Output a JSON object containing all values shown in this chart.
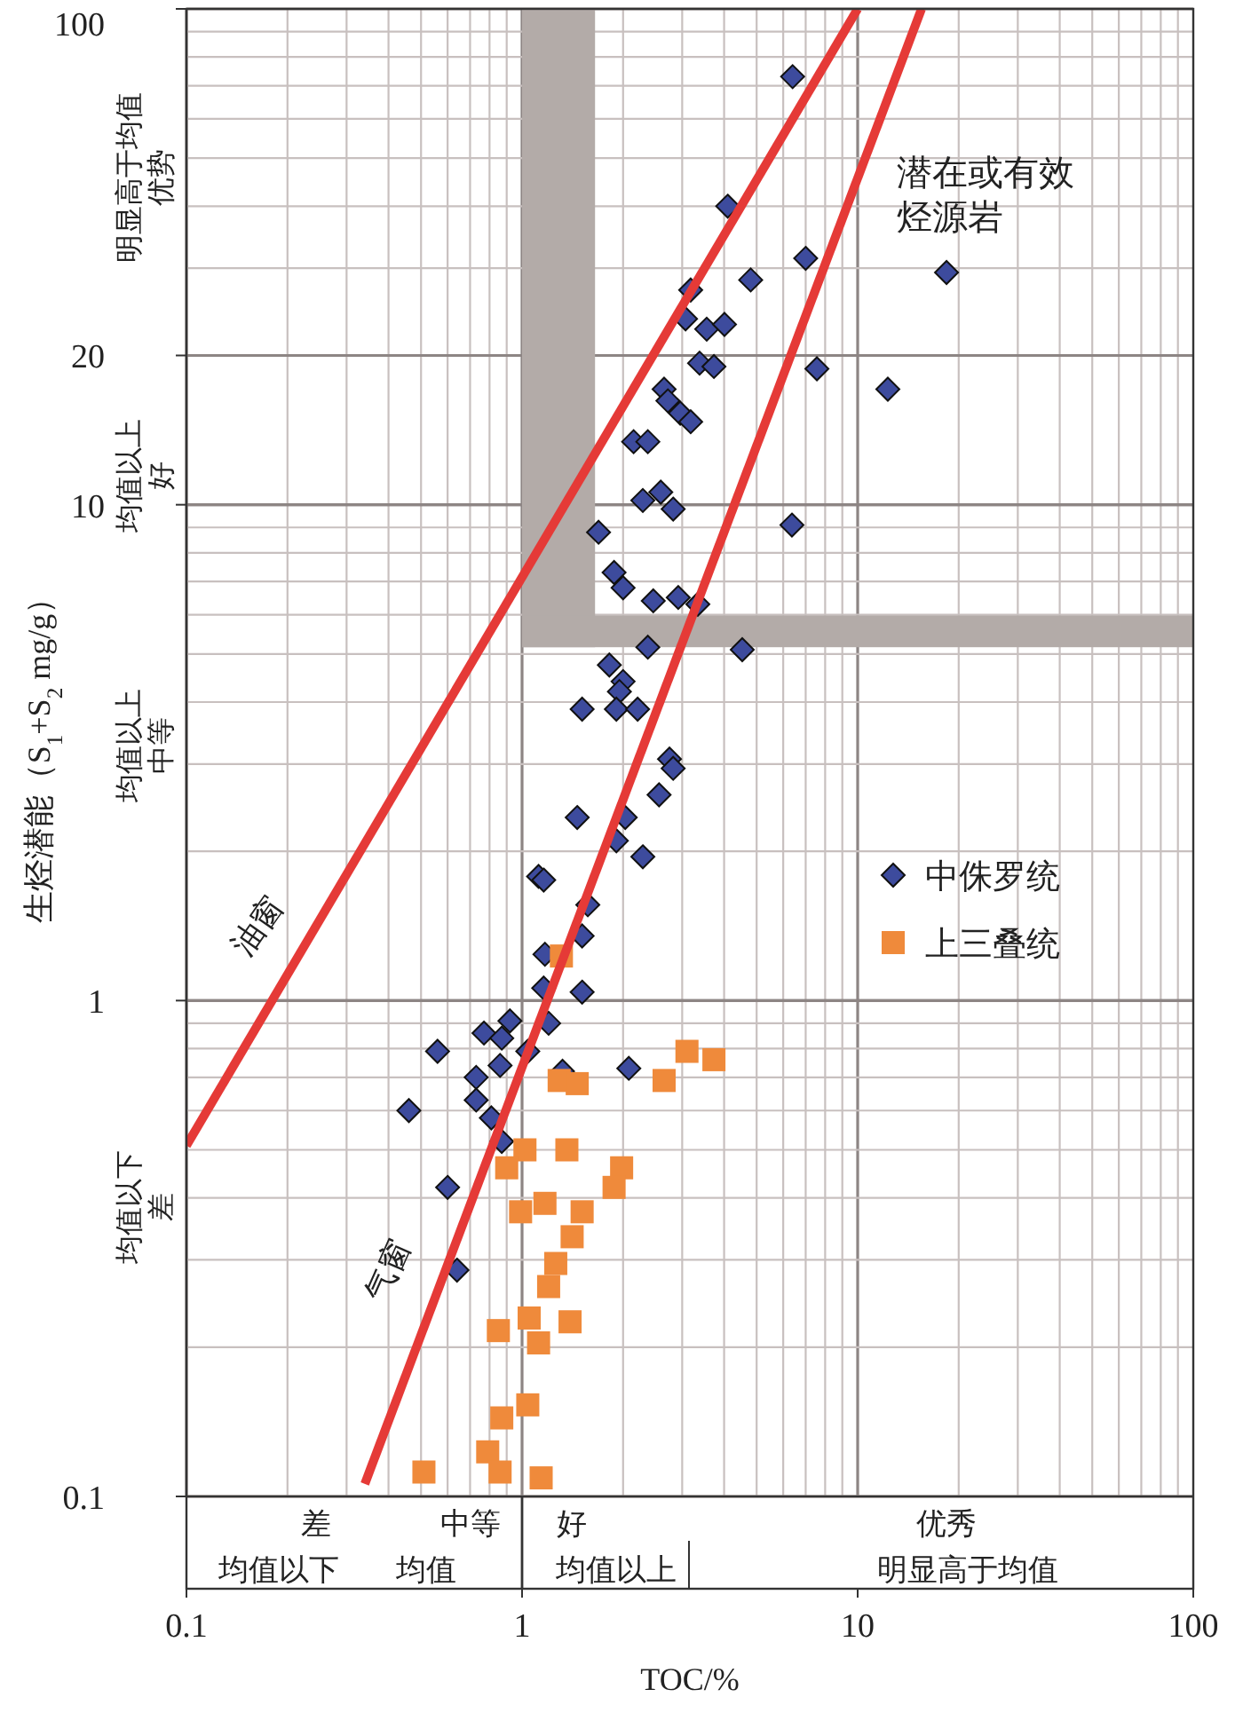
{
  "chart_data": {
    "type": "scatter",
    "xlabel": "TOC/%",
    "ylabel": "生烃潜能（S$_{1}$+S$_{2}$ mg/g）",
    "xlim": [
      0.1,
      100
    ],
    "ylim": [
      0.1,
      100
    ],
    "xticks": [
      0.1,
      1,
      10,
      100
    ],
    "yticks": [
      0.1,
      1,
      10,
      20,
      100
    ],
    "log": "xy",
    "grid": true,
    "legend": "right",
    "bands": [
      {
        "axis": "x",
        "from": 1,
        "to": 1.65,
        "color": "#b3aba8"
      },
      {
        "axis": "y",
        "from": 5.16,
        "to": 5.98,
        "color": "#b3aba8"
      }
    ],
    "series": [
      {
        "name": "中侏罗统",
        "type": "scatter",
        "marker": "diamond",
        "color": "#3d4b9d",
        "x": [
          6.4,
          4.1,
          18.4,
          7.0,
          4.8,
          3.18,
          3.07,
          3.55,
          4.01,
          3.38,
          3.73,
          7.56,
          12.3,
          2.65,
          2.72,
          2.96,
          3.18,
          2.15,
          2.37,
          2.29,
          2.59,
          2.82,
          6.37,
          1.69,
          1.88,
          2.0,
          2.46,
          2.92,
          3.34,
          2.37,
          4.53,
          1.82,
          2.0,
          1.95,
          1.51,
          1.91,
          2.21,
          2.75,
          2.82,
          2.56,
          1.46,
          2.03,
          1.91,
          2.29,
          1.12,
          1.16,
          1.57,
          1.51,
          1.17,
          1.16,
          1.51,
          0.92,
          0.77,
          0.87,
          1.2,
          0.56,
          1.04,
          0.86,
          2.08,
          1.32,
          0.73,
          0.46,
          0.73,
          0.81,
          0.87,
          0.6,
          0.64
        ],
        "values": [
          73,
          40,
          29.4,
          31.4,
          28.4,
          27.1,
          23.7,
          22.6,
          23.1,
          19.3,
          19.0,
          18.8,
          17.1,
          17.1,
          16.2,
          15.3,
          14.7,
          13.4,
          13.4,
          10.2,
          10.6,
          9.8,
          9.1,
          8.8,
          7.3,
          6.8,
          6.4,
          6.5,
          6.3,
          5.16,
          5.1,
          4.75,
          4.4,
          4.2,
          3.87,
          3.87,
          3.87,
          3.07,
          2.94,
          2.6,
          2.34,
          2.34,
          2.1,
          1.95,
          1.78,
          1.75,
          1.56,
          1.35,
          1.24,
          1.06,
          1.04,
          0.91,
          0.86,
          0.84,
          0.9,
          0.79,
          0.79,
          0.74,
          0.73,
          0.72,
          0.7,
          0.6,
          0.63,
          0.58,
          0.52,
          0.42,
          0.286
        ]
      },
      {
        "name": "上三叠统",
        "type": "scatter",
        "marker": "square",
        "color": "#ef8a3b",
        "x": [
          3.1,
          3.73,
          2.65,
          1.29,
          1.46,
          1.31,
          1.02,
          1.36,
          0.9,
          1.98,
          1.88,
          0.99,
          1.17,
          1.51,
          1.41,
          1.26,
          1.2,
          1.05,
          1.12,
          1.39,
          0.85,
          1.04,
          0.87,
          0.79,
          0.86,
          0.51,
          1.14
        ],
        "values": [
          0.79,
          0.76,
          0.69,
          0.69,
          0.68,
          1.23,
          0.5,
          0.5,
          0.46,
          0.46,
          0.42,
          0.375,
          0.39,
          0.375,
          0.334,
          0.295,
          0.265,
          0.229,
          0.204,
          0.225,
          0.216,
          0.153,
          0.144,
          0.123,
          0.112,
          0.112,
          0.109
        ]
      },
      {
        "type": "line",
        "color": "#e53a37",
        "x": [
          0.1,
          10
        ],
        "values": [
          0.51,
          100
        ]
      },
      {
        "type": "line",
        "color": "#e53a37",
        "x": [
          0.34,
          15.5
        ],
        "values": [
          0.106,
          100
        ]
      }
    ],
    "annotations": [
      "油窗",
      "气窗",
      "潜在或有效烃源岩",
      "明显高于均值",
      "优势",
      "均值以上",
      "好",
      "均值以上",
      "中等",
      "均值以下",
      "差",
      "差",
      "中等",
      "好",
      "优秀",
      "均值以下",
      "均值",
      "均值以上",
      "明显高于均值"
    ]
  }
}
